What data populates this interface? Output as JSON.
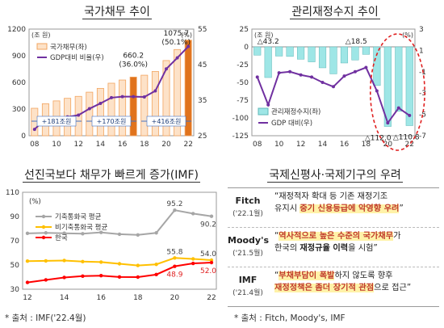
{
  "panels": {
    "debt": {
      "title": "국가채무 추이"
    },
    "fiscal": {
      "title": "관리재정수지 추이"
    },
    "imf": {
      "title": "선진국보다 채무가 빠르게 증가(IMF)"
    },
    "concern": {
      "title": "국제신평사·국제기구의 우려"
    }
  },
  "chart_data": [
    {
      "type": "bar",
      "title": "국가채무 추이",
      "x": [
        "08",
        "09",
        "10",
        "11",
        "12",
        "13",
        "14",
        "15",
        "16",
        "17",
        "18",
        "19",
        "20",
        "21",
        "22"
      ],
      "x_ticks": [
        "08",
        "10",
        "12",
        "14",
        "16",
        "18",
        "20",
        "22"
      ],
      "unit_left": "(조 원)",
      "unit_right": "(%)",
      "series": [
        {
          "name": "국가채무(좌)",
          "type": "bar",
          "axis": "left",
          "color": "#f2a45f",
          "highlight_color": "#e0731d",
          "values": [
            309,
            360,
            392,
            421,
            443,
            490,
            533,
            591,
            627,
            660.2,
            681,
            723,
            846,
            970,
            1075.7
          ],
          "highlight_index": [
            9,
            14
          ]
        },
        {
          "name": "GDP대비 비율(우)",
          "type": "line",
          "axis": "right",
          "color": "#7030a0",
          "values": [
            26.8,
            29.8,
            29.7,
            30.3,
            30.8,
            32.6,
            34.1,
            35.7,
            36.0,
            36.0,
            35.9,
            37.6,
            43.8,
            46.9,
            50.1
          ]
        }
      ],
      "ylim_left": [
        0,
        1200
      ],
      "yticks_left": [
        0,
        300,
        600,
        900,
        1200
      ],
      "ylim_right": [
        25,
        55
      ],
      "yticks_right": [
        25,
        35,
        45,
        55
      ],
      "annotations": [
        "660.2",
        "(36.0%)",
        "1075.7",
        "(50.1%)"
      ],
      "period_labels": [
        "+181조원",
        "+170조원",
        "+416조원"
      ]
    },
    {
      "type": "bar",
      "title": "관리재정수지 추이",
      "x": [
        "08",
        "09",
        "10",
        "11",
        "12",
        "13",
        "14",
        "15",
        "16",
        "17",
        "18",
        "19",
        "20",
        "21",
        "22"
      ],
      "x_ticks": [
        "08",
        "10",
        "12",
        "14",
        "16",
        "18",
        "20",
        "22"
      ],
      "unit_left": "(조 원)",
      "unit_right": "(%)",
      "series": [
        {
          "name": "관리재정수지(좌)",
          "type": "bar",
          "axis": "left",
          "color": "#9ee6e6",
          "values": [
            -11.7,
            -43.2,
            -13.0,
            -13.5,
            -17.4,
            -21.1,
            -29.5,
            -38.0,
            -22.7,
            -18.5,
            -10.6,
            -54.4,
            -112.0,
            -90.6,
            -110.8
          ]
        },
        {
          "name": "GDP 대비(우)",
          "type": "line",
          "axis": "right",
          "color": "#7030a0",
          "values": [
            -1.5,
            -4.1,
            -1.1,
            -1.0,
            -1.3,
            -1.5,
            -2.0,
            -2.4,
            -1.4,
            -1.0,
            -0.6,
            -2.8,
            -5.8,
            -4.4,
            -5.1
          ]
        }
      ],
      "ylim_left": [
        -125,
        25
      ],
      "yticks_left": [
        25,
        0,
        -25,
        -50,
        -75,
        -100,
        -125
      ],
      "ylim_right": [
        -7,
        3
      ],
      "yticks_right": [
        3,
        1,
        -1,
        -3,
        -5,
        -7
      ],
      "annotations": [
        "△43.2",
        "△18.5",
        "△112.0",
        "△110.8"
      ]
    },
    {
      "type": "line",
      "title": "선진국보다 채무가 빠르게 증가(IMF)",
      "x": [
        "12",
        "13",
        "14",
        "15",
        "16",
        "17",
        "18",
        "19",
        "20",
        "21",
        "22"
      ],
      "x_ticks": [
        "12",
        "14",
        "16",
        "18",
        "20",
        "22"
      ],
      "unit": "(%)",
      "series": [
        {
          "name": "기축통화국 평균",
          "color": "#a6a6a6",
          "values": [
            76.1,
            76.5,
            76.2,
            75.8,
            76.9,
            75.4,
            74.8,
            76.5,
            95.2,
            92.4,
            90.2
          ]
        },
        {
          "name": "비기축통화국 평균",
          "color": "#ffc000",
          "values": [
            53.2,
            53.4,
            53.7,
            52.8,
            52.4,
            51.0,
            49.6,
            50.5,
            55.8,
            55.0,
            54.0
          ]
        },
        {
          "name": "한국",
          "color": "#ff0000",
          "values": [
            35.6,
            37.7,
            39.7,
            40.8,
            41.2,
            40.1,
            40.0,
            42.1,
            48.9,
            51.3,
            52.0
          ]
        }
      ],
      "ylim": [
        30,
        110
      ],
      "yticks": [
        30,
        50,
        70,
        90,
        110
      ],
      "annotations": [
        "95.2",
        "90.2",
        "55.8",
        "54.0",
        "48.9",
        "52.0"
      ]
    }
  ],
  "concerns": [
    {
      "org": "Fitch",
      "date": "('22.1월)",
      "pre": "“재정적자 확대 등 기존 재정기조",
      "line2_pre": "유지시 ",
      "hl": "중기 신용등급에 악영향 우려",
      "post": "”"
    },
    {
      "org": "Moody's",
      "date": "('21.5월)",
      "pre": "“",
      "hl": "역사적으로 높은 수준의 국가채무",
      "post": "가",
      "line2_pre": "한국의 ",
      "bold": "재정규율 이력",
      "line2_post": "을 시험”"
    },
    {
      "org": "IMF",
      "date": "('21.4월)",
      "pre": "“",
      "hl": "부채부담이 폭발",
      "post": "하지 않도록 향후",
      "hl2": "재정정책은 좀더 장기적 관점",
      "line2_post": "으로 접근”"
    }
  ],
  "sources": {
    "left": "* 출처 : IMF('22.4월)",
    "right": "* 출처 : Fitch, Moody's, IMF"
  }
}
